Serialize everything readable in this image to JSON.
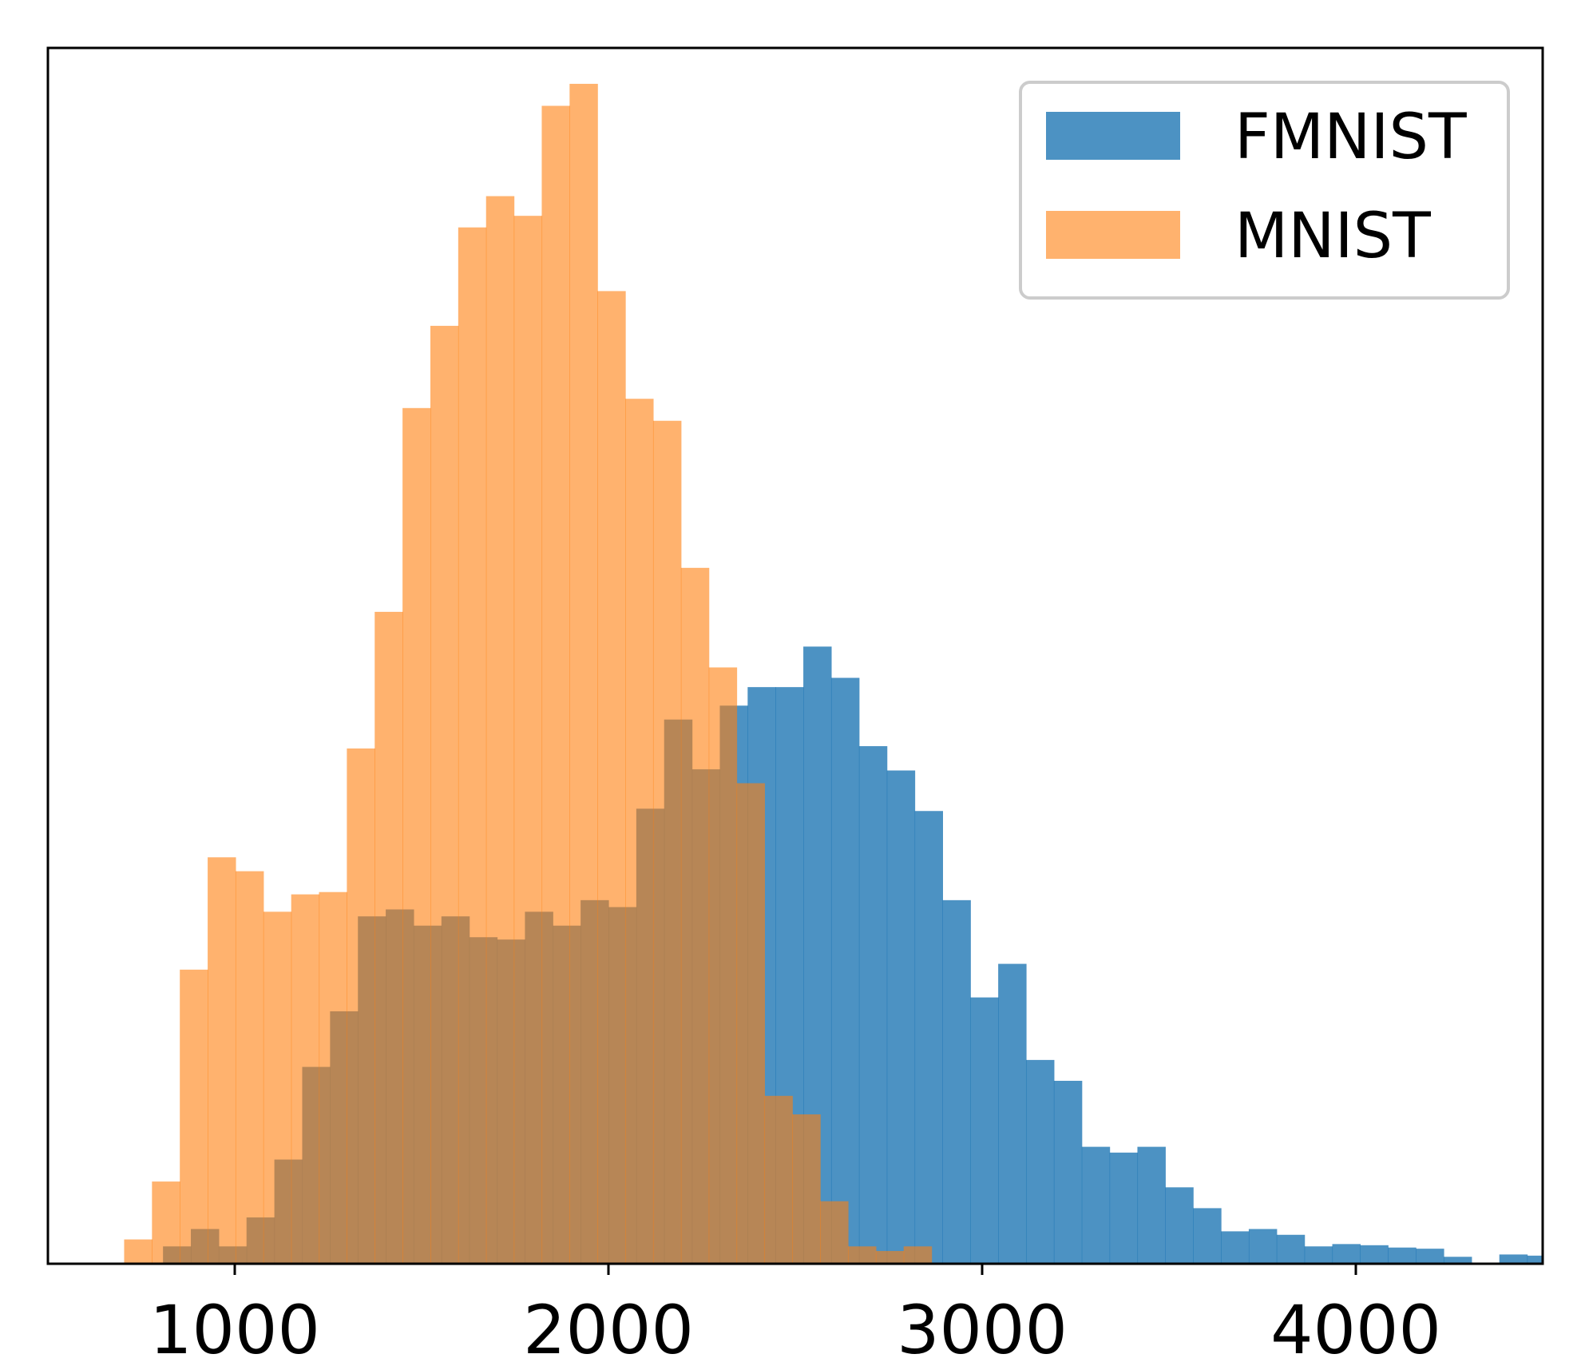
{
  "chart_data": {
    "type": "bar",
    "subtype": "overlapping-histogram",
    "title": "",
    "xlabel": "",
    "ylabel": "",
    "xlim": [
      500,
      4500
    ],
    "ylim": [
      0,
      1.05
    ],
    "x_ticks": [
      1000,
      2000,
      3000,
      4000
    ],
    "x_tick_labels": [
      "1000",
      "2000",
      "3000",
      "4000"
    ],
    "y_ticks_shown": false,
    "grid": false,
    "legend": {
      "position": "top-right"
    },
    "bin_width": 74.5,
    "series": [
      {
        "name": "FMNIST",
        "color": "#1f77b4",
        "opacity": 0.8,
        "bin_start": 808,
        "values": [
          0.015,
          0.03,
          0.015,
          0.04,
          0.09,
          0.17,
          0.218,
          0.3,
          0.306,
          0.292,
          0.3,
          0.282,
          0.28,
          0.304,
          0.292,
          0.314,
          0.308,
          0.393,
          0.47,
          0.427,
          0.482,
          0.498,
          0.498,
          0.533,
          0.506,
          0.447,
          0.426,
          0.391,
          0.314,
          0.23,
          0.259,
          0.176,
          0.158,
          0.101,
          0.096,
          0.101,
          0.066,
          0.048,
          0.028,
          0.03,
          0.025,
          0.015,
          0.017,
          0.016,
          0.014,
          0.013,
          0.006,
          0.0,
          0.008,
          0.007,
          0.003,
          0.006
        ]
      },
      {
        "name": "MNIST",
        "color": "#ff7f0e",
        "opacity": 0.6,
        "bin_start": 704,
        "values": [
          0.021,
          0.071,
          0.254,
          0.351,
          0.339,
          0.304,
          0.319,
          0.321,
          0.445,
          0.563,
          0.739,
          0.81,
          0.895,
          0.922,
          0.905,
          1.0,
          1.019,
          0.84,
          0.747,
          0.728,
          0.601,
          0.515,
          0.415,
          0.145,
          0.129,
          0.054,
          0.015,
          0.011,
          0.015
        ]
      }
    ]
  }
}
